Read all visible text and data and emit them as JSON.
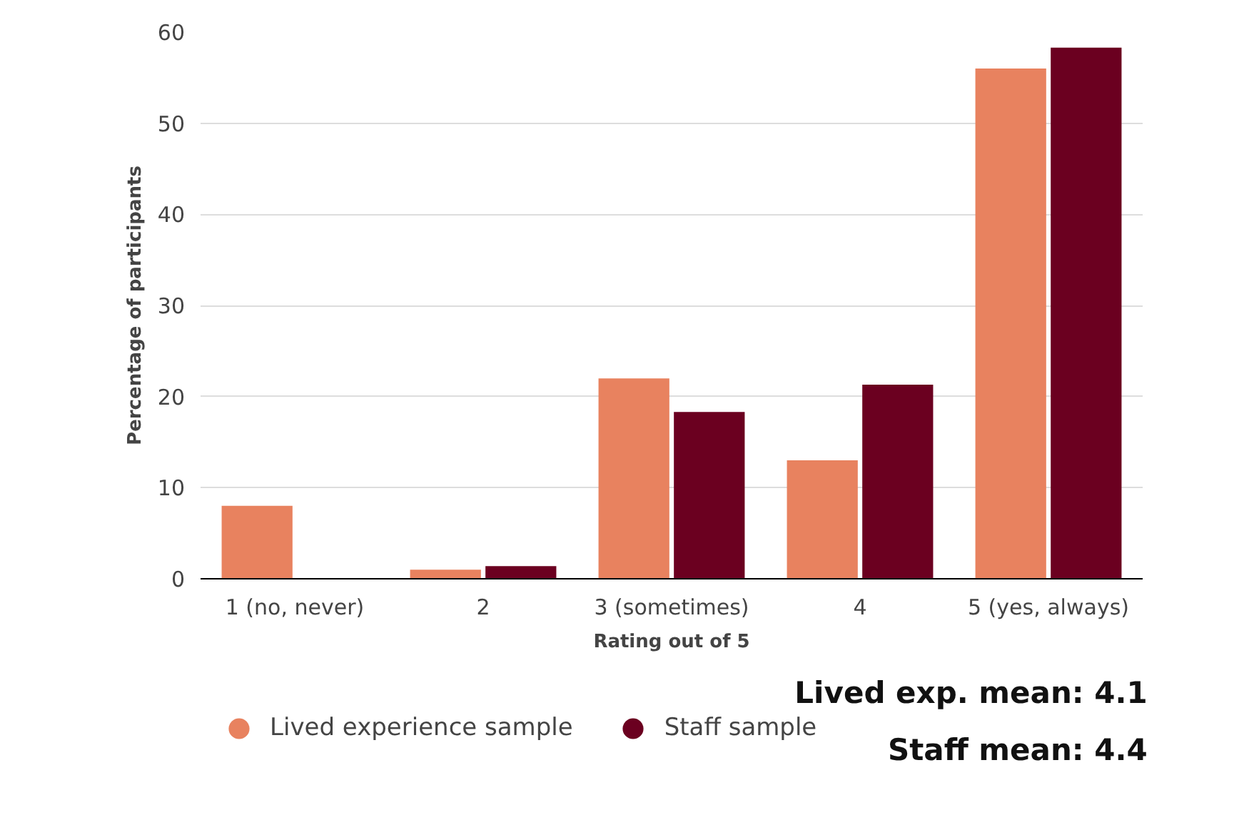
{
  "chart_data": {
    "type": "bar",
    "xlabel": "Rating out of 5",
    "ylabel": "Percentage of participants",
    "categories": [
      "1 (no, never)",
      "2",
      "3 (sometimes)",
      "4",
      "5 (yes, always)"
    ],
    "series": [
      {
        "name": "Lived experience sample",
        "color": "#e8825f",
        "values": [
          8,
          1,
          22,
          13,
          56
        ]
      },
      {
        "name": "Staff sample",
        "color": "#6b0020",
        "values": [
          0,
          1.4,
          18.3,
          21.3,
          58.3
        ]
      }
    ],
    "ylim": [
      0,
      60
    ],
    "yticks": [
      0,
      10,
      20,
      30,
      40,
      50,
      60
    ],
    "grid": "y",
    "legend": "bottom",
    "annotations": [
      "Lived exp. mean: 4.1",
      "Staff mean: 4.4"
    ]
  }
}
